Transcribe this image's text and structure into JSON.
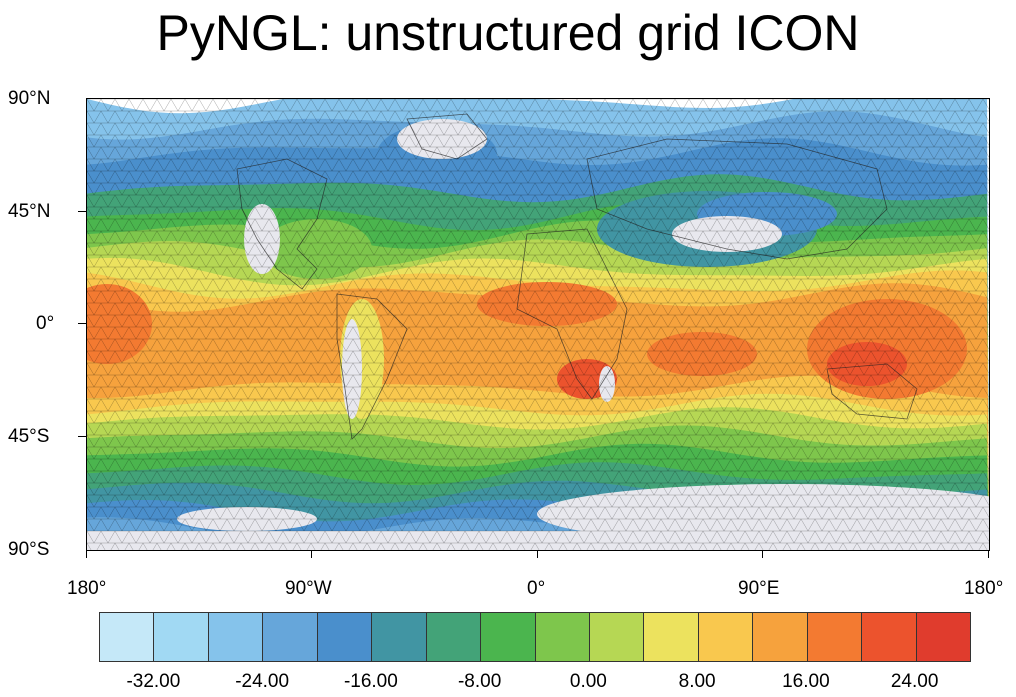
{
  "title": "PyNGL: unstructured grid ICON",
  "lat_labels": [
    "90°N",
    "45°N",
    "0°",
    "45°S",
    "90°S"
  ],
  "lon_labels": [
    "180°",
    "90°W",
    "0°",
    "90°E",
    "180°"
  ],
  "colorbar": {
    "colors": [
      "#c5e8f8",
      "#a1d9f3",
      "#85c3eb",
      "#66a6da",
      "#4a8fcc",
      "#4195a3",
      "#43a378",
      "#4bb54e",
      "#7ec64c",
      "#b6d754",
      "#ece25e",
      "#f9c84e",
      "#f6a23d",
      "#f37a31",
      "#ec532d",
      "#e03c2d"
    ],
    "labels": [
      "-32.00",
      "-24.00",
      "-16.00",
      "-8.00",
      "0.00",
      "8.00",
      "16.00",
      "24.00"
    ],
    "missing_color": "#e8e8ee"
  }
}
